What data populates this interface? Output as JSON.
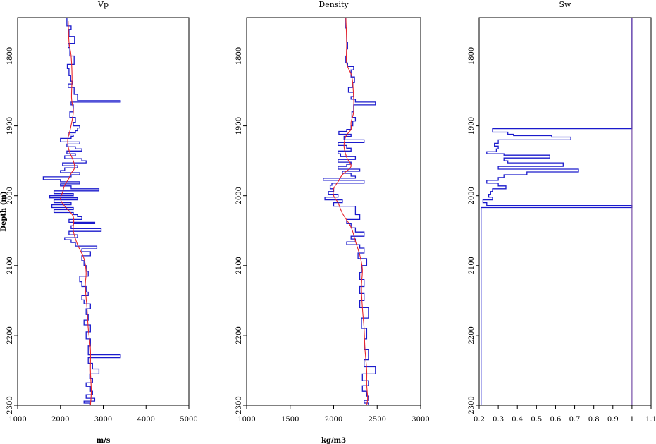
{
  "figure": {
    "shared_ylabel": "Depth (m)"
  },
  "chart_data": [
    {
      "type": "line",
      "title": "Vp",
      "xlabel": "m/s",
      "ylabel": "Depth (m)",
      "xlim": [
        1000,
        5000
      ],
      "ylim": [
        2300,
        1745
      ],
      "x_ticks": [
        1000,
        2000,
        3000,
        4000,
        5000
      ],
      "x_tick_labels": [
        "1000",
        "2000",
        "3000",
        "4000",
        "5000"
      ],
      "y_ticks": [
        1800,
        1900,
        2000,
        2100,
        2200,
        2300
      ],
      "y_tick_labels": [
        "1800",
        "1900",
        "2000",
        "2100",
        "2200",
        "2300"
      ],
      "grid": false,
      "series": [
        {
          "style": "step",
          "color": "#1a1acc",
          "x": [
            2150,
            2250,
            2200,
            2330,
            2180,
            2220,
            2320,
            2160,
            2200,
            2240,
            2280,
            2180,
            2320,
            2400,
            3400,
            2250,
            2300,
            2220,
            2350,
            2300,
            2450,
            2400,
            2350,
            2200,
            2300,
            2250,
            2000,
            2450,
            2150,
            2350,
            2500,
            2150,
            2350,
            2100,
            2500,
            2600,
            2050,
            2400,
            2100,
            2000,
            2450,
            2250,
            1600,
            2000,
            2450,
            2000,
            2250,
            2900,
            1850,
            2300,
            1750,
            2400,
            1850,
            2250,
            1800,
            2300,
            1850,
            2300,
            2400,
            2500,
            2200,
            2800,
            2300,
            2250,
            2950,
            2200,
            2400,
            2100,
            2250,
            2350,
            2850,
            2500,
            2700,
            2500,
            2550,
            2600,
            2650,
            2450,
            2500,
            2600,
            2650,
            2500,
            2550,
            2700,
            2600,
            2650,
            2550,
            2700,
            2600,
            2700,
            2650,
            3400,
            2650,
            2750,
            2900,
            2700,
            2750,
            2600,
            2700,
            2750,
            2600,
            2800,
            2550,
            2700,
            2750,
            2650,
            2550,
            2700
          ],
          "y": [
            1745,
            1757,
            1762,
            1772,
            1782,
            1788,
            1800,
            1812,
            1818,
            1828,
            1836,
            1840,
            1845,
            1855,
            1864,
            1866,
            1870,
            1880,
            1888,
            1895,
            1900,
            1903,
            1907,
            1910,
            1913,
            1915,
            1918,
            1923,
            1926,
            1930,
            1933,
            1936,
            1940,
            1943,
            1947,
            1950,
            1953,
            1957,
            1960,
            1964,
            1967,
            1970,
            1973,
            1977,
            1980,
            1983,
            1986,
            1990,
            1993,
            1997,
            2000,
            2003,
            2006,
            2010,
            2013,
            2017,
            2020,
            2024,
            2027,
            2030,
            2034,
            2038,
            2040,
            2043,
            2047,
            2051,
            2056,
            2060,
            2063,
            2067,
            2072,
            2076,
            2080,
            2086,
            2093,
            2100,
            2108,
            2115,
            2123,
            2130,
            2138,
            2143,
            2149,
            2155,
            2162,
            2170,
            2178,
            2185,
            2195,
            2205,
            2215,
            2228,
            2232,
            2240,
            2248,
            2255,
            2262,
            2268,
            2273,
            2280,
            2285,
            2290,
            2294,
            2297,
            2300,
            2300,
            2300,
            2300
          ]
        },
        {
          "style": "smooth",
          "color": "#e8242a",
          "x": [
            2180,
            2200,
            2250,
            2270,
            2260,
            2300,
            2230,
            2170,
            2200,
            2300,
            2330,
            2250,
            2200,
            2100,
            2050,
            2000,
            2100,
            2300,
            2300,
            2400,
            2550,
            2600,
            2580,
            2620,
            2650,
            2700,
            2700,
            2720,
            2700
          ],
          "y": [
            1750,
            1780,
            1800,
            1830,
            1860,
            1880,
            1905,
            1920,
            1935,
            1950,
            1960,
            1968,
            1975,
            1985,
            1995,
            2005,
            2015,
            2030,
            2050,
            2070,
            2090,
            2110,
            2130,
            2160,
            2190,
            2220,
            2250,
            2280,
            2300
          ]
        }
      ]
    },
    {
      "type": "line",
      "title": "Density",
      "xlabel": "kg/m3",
      "ylabel": "",
      "xlim": [
        1000,
        3000
      ],
      "ylim": [
        2300,
        1745
      ],
      "x_ticks": [
        1000,
        1500,
        2000,
        2500,
        3000
      ],
      "x_tick_labels": [
        "1000",
        "1500",
        "2000",
        "2500",
        "3000"
      ],
      "y_ticks": [
        1800,
        1900,
        2000,
        2100,
        2200,
        2300
      ],
      "y_tick_labels": [
        "1800",
        "1900",
        "2000",
        "2100",
        "2200",
        "2300"
      ],
      "grid": false,
      "series": [
        {
          "style": "step",
          "color": "#1a1acc",
          "x": [
            2140,
            2150,
            2160,
            2150,
            2140,
            2160,
            2230,
            2200,
            2240,
            2220,
            2170,
            2230,
            2200,
            2250,
            2480,
            2230,
            2210,
            2250,
            2220,
            2200,
            2150,
            2060,
            2200,
            2120,
            2350,
            2050,
            2150,
            2200,
            2050,
            2080,
            2250,
            2050,
            2200,
            2150,
            2050,
            2300,
            2100,
            2200,
            2250,
            1880,
            2350,
            1980,
            1960,
            2000,
            1940,
            2050,
            1900,
            2100,
            2000,
            2250,
            2250,
            2300,
            2150,
            2200,
            2250,
            2350,
            2200,
            2250,
            2150,
            2300,
            2350,
            2280,
            2380,
            2320,
            2300,
            2350,
            2300,
            2350,
            2300,
            2400,
            2320,
            2380,
            2350,
            2400,
            2350,
            2480,
            2330,
            2400,
            2330,
            2380,
            2400,
            2350,
            2400,
            2330,
            2400
          ],
          "y": [
            1745,
            1760,
            1780,
            1790,
            1800,
            1810,
            1815,
            1820,
            1830,
            1838,
            1845,
            1852,
            1858,
            1862,
            1866,
            1870,
            1880,
            1888,
            1893,
            1900,
            1905,
            1908,
            1912,
            1915,
            1920,
            1924,
            1928,
            1932,
            1936,
            1940,
            1944,
            1948,
            1952,
            1955,
            1958,
            1962,
            1965,
            1968,
            1972,
            1975,
            1978,
            1982,
            1985,
            1990,
            1994,
            1998,
            2002,
            2006,
            2010,
            2015,
            2020,
            2027,
            2034,
            2040,
            2046,
            2052,
            2058,
            2062,
            2066,
            2070,
            2075,
            2082,
            2090,
            2100,
            2110,
            2120,
            2130,
            2140,
            2150,
            2160,
            2175,
            2190,
            2205,
            2220,
            2235,
            2245,
            2255,
            2265,
            2272,
            2280,
            2287,
            2293,
            2297,
            2300,
            2300
          ]
        },
        {
          "style": "smooth",
          "color": "#e8242a",
          "x": [
            2140,
            2150,
            2150,
            2210,
            2230,
            2230,
            2200,
            2200,
            2140,
            2120,
            2150,
            2200,
            2100,
            2050,
            2000,
            2000,
            2050,
            2100,
            2200,
            2250,
            2300,
            2330,
            2320,
            2330,
            2350,
            2360,
            2380,
            2380,
            2390,
            2380
          ],
          "y": [
            1745,
            1780,
            1810,
            1830,
            1860,
            1880,
            1895,
            1905,
            1915,
            1930,
            1945,
            1958,
            1970,
            1980,
            1990,
            2000,
            2010,
            2025,
            2045,
            2065,
            2085,
            2105,
            2130,
            2160,
            2190,
            2220,
            2250,
            2270,
            2290,
            2300
          ]
        }
      ]
    },
    {
      "type": "line",
      "title": "Sw",
      "xlabel": "",
      "ylabel": "",
      "xlim": [
        0.2,
        1.1
      ],
      "ylim": [
        2300,
        1745
      ],
      "x_ticks": [
        0.2,
        0.3,
        0.4,
        0.5,
        0.6,
        0.7,
        0.8,
        0.9,
        1,
        1.1
      ],
      "x_tick_labels": [
        "0.2",
        "0.3",
        "0.4",
        "0.5",
        "0.6",
        "0.7",
        "0.8",
        "0.9",
        "1",
        "1.1"
      ],
      "y_ticks": [
        1800,
        1900,
        2000,
        2100,
        2200,
        2300
      ],
      "y_tick_labels": [
        "1800",
        "1900",
        "2000",
        "2100",
        "2200",
        "2300"
      ],
      "grid": false,
      "series": [
        {
          "style": "step",
          "color": "#1a1acc",
          "x": [
            1,
            0.27,
            0.35,
            0.38,
            0.58,
            0.68,
            0.3,
            0.28,
            0.3,
            0.29,
            0.24,
            0.33,
            0.57,
            0.33,
            0.35,
            0.64,
            0.3,
            0.72,
            0.45,
            0.33,
            0.3,
            0.24,
            0.3,
            0.34,
            0.27,
            0.26,
            0.25,
            0.27,
            0.22,
            0.24,
            1,
            0.21,
            1
          ],
          "y": [
            1745,
            1904,
            1909,
            1912,
            1914,
            1916,
            1920,
            1925,
            1929,
            1933,
            1937,
            1940,
            1942,
            1946,
            1950,
            1953,
            1958,
            1962,
            1966,
            1970,
            1974,
            1978,
            1982,
            1986,
            1990,
            1994,
            1998,
            2002,
            2006,
            2010,
            2014,
            2017,
            2300
          ]
        },
        {
          "style": "line",
          "color": "#6b3fa0",
          "x": [
            1,
            1
          ],
          "y": [
            1745,
            2300
          ]
        }
      ]
    }
  ]
}
